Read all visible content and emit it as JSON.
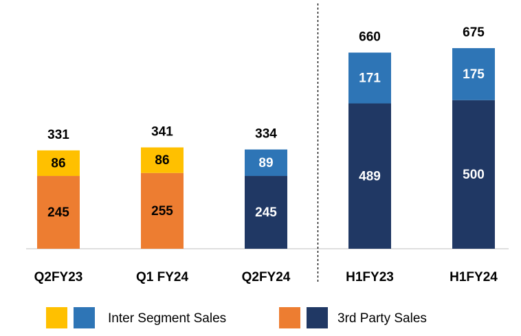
{
  "chart_data": {
    "type": "stacked_bar",
    "categories": [
      "Q2FY23",
      "Q1 FY24",
      "Q2FY24",
      "H1FY23",
      "H1FY24"
    ],
    "series": [
      {
        "name": "3rd Party Sales",
        "colors": [
          "#ed7d31",
          "#ed7d31",
          "#203864",
          "#203864",
          "#203864"
        ],
        "values": [
          245,
          255,
          245,
          489,
          500
        ]
      },
      {
        "name": "Inter Segment Sales",
        "colors": [
          "#ffc000",
          "#ffc000",
          "#2e75b6",
          "#2e75b6",
          "#2e75b6"
        ],
        "values": [
          86,
          86,
          89,
          171,
          175
        ]
      }
    ],
    "totals": [
      331,
      341,
      334,
      660,
      675
    ],
    "ylim": [
      0,
      800
    ],
    "divider_after": 3
  }
}
